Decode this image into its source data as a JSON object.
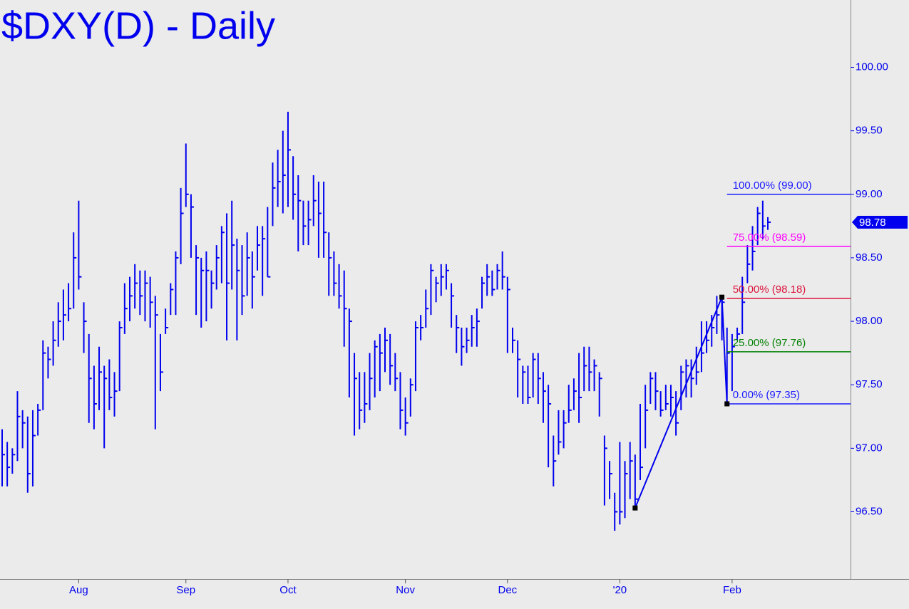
{
  "chart_data": {
    "type": "hlc",
    "title": "$DXY(D) - Daily",
    "color": "#0000ee",
    "categories": [
      null,
      null,
      null,
      null,
      null,
      null,
      null,
      null,
      null,
      null,
      null,
      null,
      null,
      null,
      null,
      "Aug",
      null,
      null,
      null,
      null,
      null,
      null,
      null,
      null,
      null,
      null,
      null,
      null,
      null,
      null,
      null,
      null,
      null,
      null,
      null,
      null,
      "Sep",
      null,
      null,
      null,
      null,
      null,
      null,
      null,
      null,
      null,
      null,
      null,
      null,
      null,
      null,
      null,
      null,
      null,
      null,
      null,
      "Oct",
      null,
      null,
      null,
      null,
      null,
      null,
      null,
      null,
      null,
      null,
      null,
      null,
      null,
      null,
      null,
      null,
      null,
      null,
      null,
      null,
      null,
      null,
      "Nov",
      null,
      null,
      null,
      null,
      null,
      null,
      null,
      null,
      null,
      null,
      null,
      null,
      null,
      null,
      null,
      null,
      null,
      null,
      null,
      "Dec",
      null,
      null,
      null,
      null,
      null,
      null,
      null,
      null,
      null,
      null,
      null,
      null,
      null,
      null,
      null,
      null,
      null,
      null,
      null,
      null,
      null,
      "'20",
      null,
      null,
      null,
      null,
      null,
      null,
      null,
      null,
      null,
      null,
      null,
      null,
      null,
      null,
      null,
      null,
      null,
      null,
      null,
      null,
      null,
      "Feb",
      null,
      null,
      null,
      null,
      null,
      null,
      null
    ],
    "high": [
      97.15,
      97.05,
      97.0,
      97.45,
      97.3,
      97.25,
      97.3,
      97.35,
      97.85,
      97.8,
      98.0,
      98.15,
      98.25,
      98.3,
      98.7,
      98.95,
      98.15,
      97.9,
      97.65,
      97.8,
      97.65,
      97.7,
      97.6,
      98.0,
      98.3,
      98.35,
      98.45,
      98.4,
      98.4,
      98.35,
      98.2,
      97.9,
      98.1,
      98.3,
      98.55,
      99.05,
      99.4,
      99.0,
      98.6,
      98.5,
      98.55,
      98.4,
      98.6,
      98.75,
      98.85,
      98.95,
      98.65,
      98.6,
      98.7,
      98.55,
      98.75,
      98.75,
      98.9,
      99.25,
      99.35,
      99.5,
      99.65,
      99.3,
      99.15,
      98.95,
      98.95,
      99.15,
      99.1,
      99.1,
      98.7,
      98.55,
      98.45,
      98.4,
      98.1,
      97.75,
      97.6,
      97.6,
      97.75,
      97.85,
      97.9,
      97.95,
      97.9,
      97.75,
      97.6,
      97.4,
      97.55,
      98.0,
      98.05,
      98.25,
      98.45,
      98.35,
      98.45,
      98.45,
      98.3,
      98.05,
      97.95,
      97.95,
      98.05,
      98.1,
      98.35,
      98.45,
      98.4,
      98.45,
      98.55,
      98.35,
      97.95,
      97.85,
      97.65,
      97.65,
      97.75,
      97.75,
      97.6,
      97.5,
      97.1,
      97.3,
      97.3,
      97.5,
      97.55,
      97.75,
      97.8,
      97.8,
      97.7,
      97.6,
      97.1,
      96.9,
      96.65,
      97.05,
      96.9,
      97.05,
      96.95,
      97.35,
      97.5,
      97.6,
      97.6,
      97.45,
      97.5,
      97.5,
      97.45,
      97.65,
      97.7,
      97.7,
      97.8,
      98.0,
      98.0,
      98.05,
      98.2,
      98.19,
      97.95,
      97.9,
      97.95,
      98.35,
      98.6,
      98.75,
      98.9,
      98.95,
      98.82
    ],
    "low": [
      96.7,
      96.7,
      96.8,
      96.9,
      97.0,
      96.65,
      96.7,
      97.1,
      97.3,
      97.55,
      97.65,
      97.8,
      97.85,
      98.0,
      98.1,
      98.25,
      97.75,
      97.2,
      97.15,
      97.3,
      97.0,
      97.3,
      97.25,
      97.45,
      97.9,
      98.0,
      98.1,
      98.05,
      98.0,
      97.95,
      97.15,
      97.45,
      97.9,
      98.05,
      98.05,
      98.45,
      98.9,
      98.5,
      98.05,
      97.95,
      98.0,
      98.1,
      98.25,
      98.3,
      97.85,
      98.25,
      97.85,
      98.05,
      98.2,
      98.1,
      98.4,
      98.2,
      98.35,
      98.75,
      98.9,
      98.85,
      98.9,
      98.8,
      98.55,
      98.6,
      98.6,
      98.75,
      98.5,
      98.5,
      98.2,
      98.2,
      98.1,
      97.8,
      97.4,
      97.1,
      97.15,
      97.2,
      97.3,
      97.4,
      97.45,
      97.6,
      97.5,
      97.45,
      97.15,
      97.1,
      97.25,
      97.45,
      97.85,
      97.95,
      98.05,
      98.15,
      98.2,
      98.25,
      97.95,
      97.75,
      97.65,
      97.75,
      97.8,
      97.8,
      98.1,
      98.2,
      98.2,
      98.25,
      98.25,
      97.75,
      97.75,
      97.4,
      97.35,
      97.35,
      97.4,
      97.35,
      97.2,
      96.85,
      96.7,
      96.95,
      97.0,
      97.2,
      97.3,
      97.2,
      97.45,
      97.45,
      97.45,
      97.25,
      96.55,
      96.6,
      96.35,
      96.4,
      96.45,
      96.6,
      96.55,
      96.75,
      97.0,
      97.35,
      97.3,
      97.25,
      97.3,
      97.25,
      97.1,
      97.3,
      97.4,
      97.4,
      97.5,
      97.6,
      97.75,
      97.8,
      97.9,
      97.85,
      97.35,
      97.45,
      97.85,
      97.9,
      98.3,
      98.4,
      98.6,
      98.65,
      98.72
    ],
    "close": [
      96.95,
      96.85,
      96.95,
      97.25,
      97.2,
      96.8,
      97.1,
      97.3,
      97.75,
      97.7,
      97.85,
      98.0,
      98.05,
      98.1,
      98.5,
      98.35,
      98.0,
      97.55,
      97.35,
      97.6,
      97.55,
      97.4,
      97.45,
      97.95,
      98.1,
      98.2,
      98.3,
      98.2,
      98.3,
      98.15,
      98.05,
      97.6,
      97.95,
      98.25,
      98.5,
      98.85,
      99.0,
      98.9,
      98.5,
      98.4,
      98.4,
      98.3,
      98.5,
      98.7,
      98.3,
      98.6,
      98.4,
      98.2,
      98.5,
      98.35,
      98.6,
      98.65,
      98.35,
      99.05,
      99.1,
      99.15,
      99.35,
      99.0,
      98.95,
      98.75,
      98.8,
      98.95,
      98.85,
      98.7,
      98.5,
      98.3,
      98.2,
      98.1,
      98.0,
      97.55,
      97.3,
      97.35,
      97.55,
      97.8,
      97.75,
      97.85,
      97.65,
      97.55,
      97.3,
      97.2,
      97.5,
      97.95,
      97.95,
      98.1,
      98.4,
      98.3,
      98.35,
      98.4,
      98.2,
      97.95,
      97.8,
      97.85,
      97.95,
      98.0,
      98.3,
      98.35,
      98.25,
      98.4,
      98.35,
      98.25,
      97.85,
      97.7,
      97.6,
      97.4,
      97.7,
      97.55,
      97.45,
      97.35,
      96.9,
      97.05,
      97.2,
      97.3,
      97.45,
      97.4,
      97.65,
      97.6,
      97.65,
      97.55,
      97.0,
      96.8,
      96.5,
      96.5,
      96.8,
      96.9,
      96.6,
      96.85,
      97.3,
      97.55,
      97.45,
      97.3,
      97.35,
      97.4,
      97.2,
      97.6,
      97.65,
      97.55,
      97.6,
      97.75,
      97.85,
      97.95,
      98.05,
      98.15,
      97.75,
      97.8,
      97.9,
      98.15,
      98.45,
      98.55,
      98.85,
      98.75,
      98.78
    ],
    "pattern": {
      "color": "#0000ee",
      "x": [
        124,
        141,
        142
      ],
      "values": [
        96.53,
        98.19,
        97.35
      ]
    },
    "fib_levels": [
      {
        "label": "100.00% (99.00)",
        "value": 99.0,
        "color": "#1a1aff"
      },
      {
        "label": "75.00% (98.59)",
        "value": 98.59,
        "color": "#ff00ff"
      },
      {
        "label": "50.00% (98.18)",
        "value": 98.18,
        "color": "#dc143c"
      },
      {
        "label": "25.00% (97.76)",
        "value": 97.76,
        "color": "#008000"
      },
      {
        "label": "0.00% (97.35)",
        "value": 97.35,
        "color": "#1a1aff"
      }
    ],
    "last_price": 98.78,
    "ylim": [
      95.97,
      100.53
    ],
    "yticks": [
      {
        "value": 96.5,
        "label": "96.50"
      },
      {
        "value": 97,
        "label": "97.00"
      },
      {
        "value": 97.5,
        "label": "97.50"
      },
      {
        "value": 98,
        "label": "98.00"
      },
      {
        "value": 98.5,
        "label": "98.50"
      },
      {
        "value": 99,
        "label": "99.00"
      },
      {
        "value": 99.5,
        "label": "99.50"
      },
      {
        "value": 100,
        "label": "100.00"
      }
    ]
  }
}
